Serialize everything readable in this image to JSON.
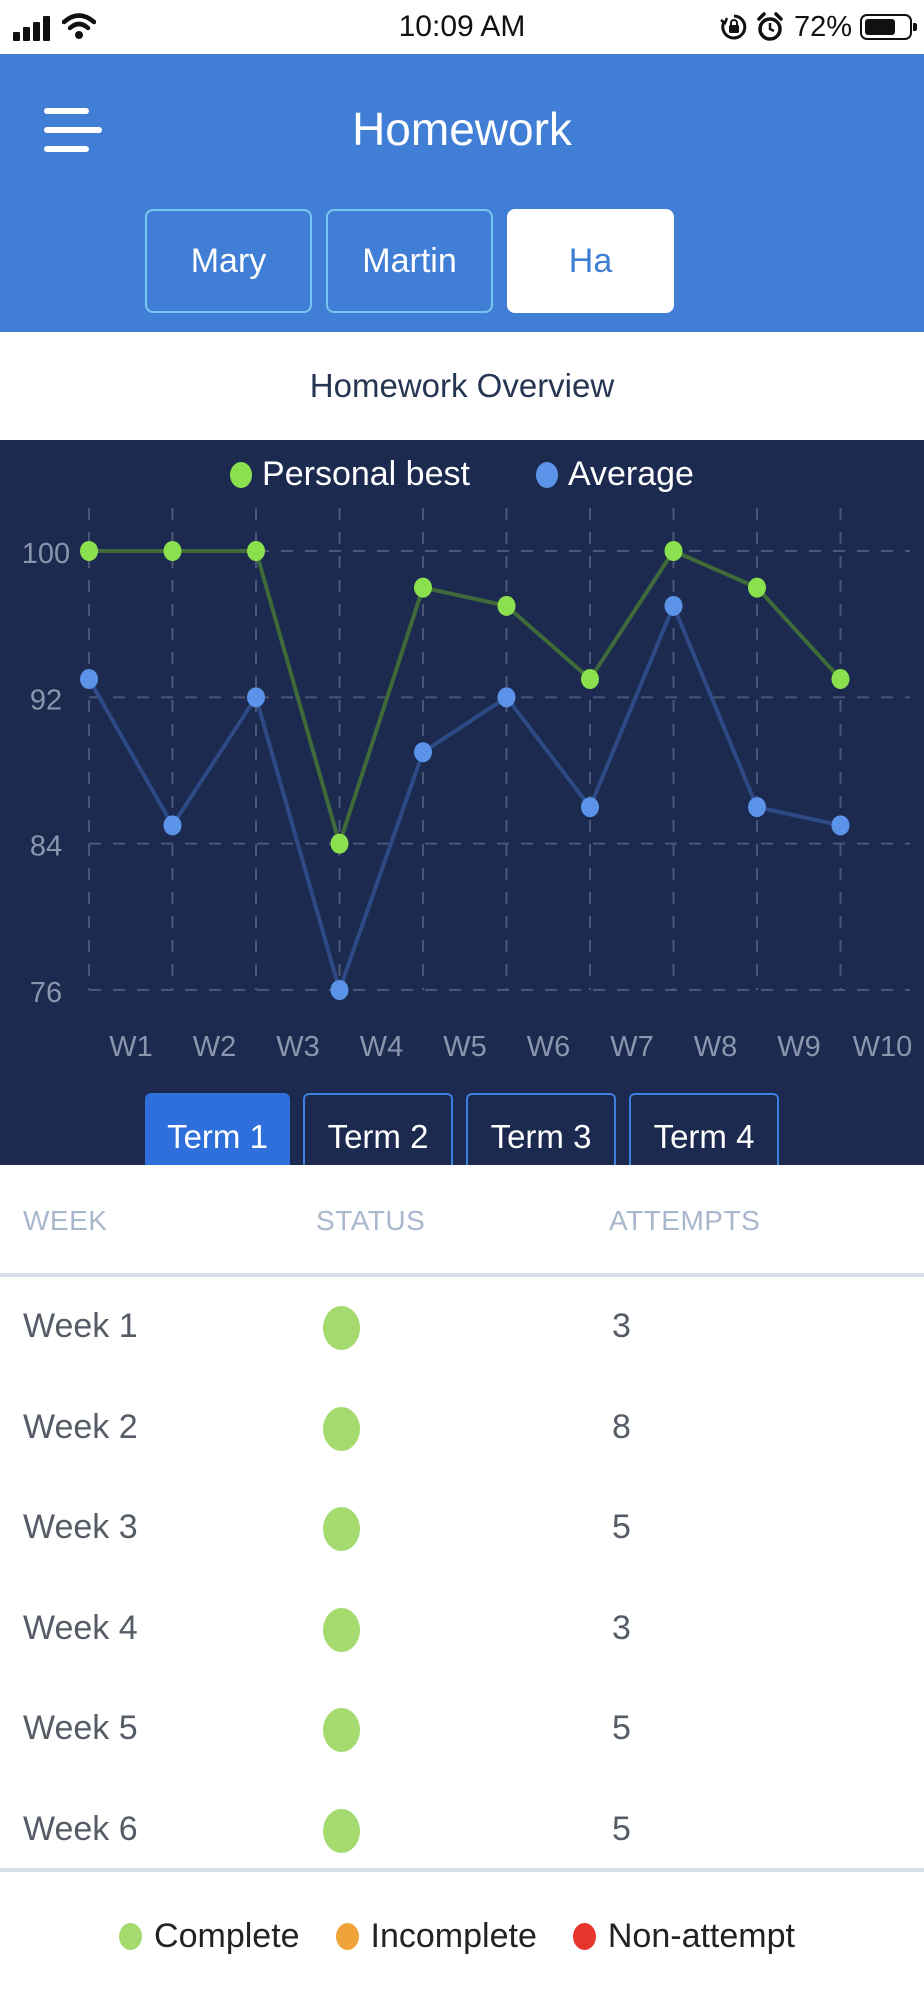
{
  "status_bar": {
    "time": "10:09 AM",
    "battery": "72%",
    "battery_level": 0.72
  },
  "header": {
    "title": "Homework",
    "menu_icon": "hamburger-menu-icon"
  },
  "people_tabs": [
    {
      "label": "Mary",
      "active": false
    },
    {
      "label": "Martin",
      "active": false
    },
    {
      "label": "Ha",
      "active": true
    }
  ],
  "overview_title": "Homework Overview",
  "colors": {
    "header_bg": "#417ed6",
    "chart_bg": "#1b2a4e",
    "personal_best": "#8be04e",
    "average": "#5b93e8",
    "complete": "#a4da6e",
    "incomplete": "#f0a33a",
    "non_attempt": "#e8352c"
  },
  "chart_data": {
    "type": "line",
    "legend": [
      "Personal best",
      "Average"
    ],
    "legend_position": "top-center",
    "grid": true,
    "y_ticks": [
      "76",
      "84",
      "92",
      "100"
    ],
    "ylim": [
      76,
      100
    ],
    "x_ticks": [
      "W1",
      "W2",
      "W3",
      "W4",
      "W5",
      "W6",
      "W7",
      "W8",
      "W9",
      "W10"
    ],
    "series": [
      {
        "name": "Personal best",
        "values": [
          100,
          100,
          100,
          84,
          98,
          97,
          93,
          100,
          98,
          93
        ]
      },
      {
        "name": "Average",
        "values": [
          93,
          85,
          92,
          76,
          89,
          92,
          86,
          97,
          86,
          85
        ]
      }
    ]
  },
  "term_tabs": [
    {
      "label": "Term 1",
      "active": true
    },
    {
      "label": "Term 2",
      "active": false
    },
    {
      "label": "Term 3",
      "active": false
    },
    {
      "label": "Term 4",
      "active": false
    }
  ],
  "table": {
    "headers": {
      "week": "WEEK",
      "status": "STATUS",
      "attempts": "ATTEMPTS"
    },
    "rows": [
      {
        "week": "Week 1",
        "status": "complete",
        "attempts": "3"
      },
      {
        "week": "Week 2",
        "status": "complete",
        "attempts": "8"
      },
      {
        "week": "Week 3",
        "status": "complete",
        "attempts": "5"
      },
      {
        "week": "Week 4",
        "status": "complete",
        "attempts": "3"
      },
      {
        "week": "Week 5",
        "status": "complete",
        "attempts": "5"
      },
      {
        "week": "Week 6",
        "status": "complete",
        "attempts": "5"
      }
    ]
  },
  "status_legend": {
    "complete": "Complete",
    "incomplete": "Incomplete",
    "non_attempt": "Non-attempt"
  }
}
